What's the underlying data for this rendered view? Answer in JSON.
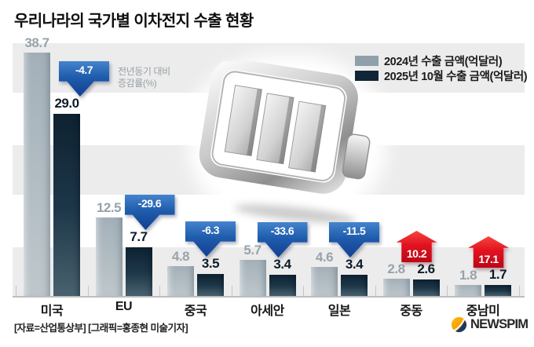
{
  "title": "우리나라의 국가별 이차전지 수출 현황",
  "annotation": {
    "line1": "전년동기 대비",
    "line2": "증감률(%)"
  },
  "legend": [
    {
      "label": "2024년 수출 금액(억달러)",
      "color": "#8fa0ab"
    },
    {
      "label": "2025년 10월 수출 금액(억달러)",
      "color": "#102637"
    }
  ],
  "chart_data": {
    "type": "bar",
    "categories": [
      "미국",
      "EU",
      "중국",
      "아세안",
      "일본",
      "중동",
      "중남미"
    ],
    "series": [
      {
        "name": "2024년 수출 금액(억달러)",
        "values": [
          38.7,
          12.5,
          4.8,
          5.7,
          4.6,
          2.8,
          1.8
        ]
      },
      {
        "name": "2025년 10월 수출 금액(억달러)",
        "values": [
          29.0,
          7.7,
          3.5,
          3.4,
          3.4,
          2.6,
          1.7
        ]
      }
    ],
    "change_pct": [
      -4.7,
      -29.6,
      -6.3,
      -33.6,
      -11.5,
      10.2,
      17.1
    ],
    "unit": "억달러",
    "ylim": [
      0,
      40
    ],
    "grid": "horizontal-stripes",
    "legend_position": "top-right"
  },
  "colors": {
    "bar_2024": "#a9b5bd",
    "bar_2025": "#132b3c",
    "decrease_arrow": "#1f5cad",
    "increase_arrow": "#e31220",
    "stripe": "#ececec"
  },
  "footer": {
    "source": "[자료=산업통상부] [그래픽=홍종현 미술기자]",
    "logo_text": "NEWSPIM"
  }
}
